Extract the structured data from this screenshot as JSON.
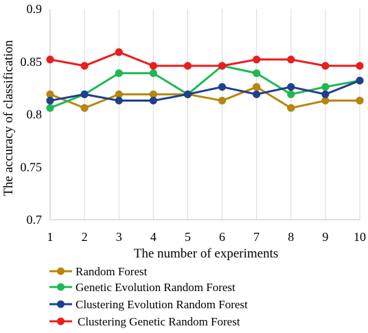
{
  "chart_data": {
    "type": "line",
    "title": "",
    "xlabel": "The number of experiments",
    "ylabel": "The accuracy of classification",
    "x": [
      1,
      2,
      3,
      4,
      5,
      6,
      7,
      8,
      9,
      10
    ],
    "xlim": [
      1,
      10
    ],
    "ylim": [
      0.7,
      0.9
    ],
    "yticks": [
      0.7,
      0.75,
      0.8,
      0.85,
      0.9
    ],
    "ytick_labels": [
      "0.7",
      "0.75",
      "0.8",
      "0.85",
      "0.9"
    ],
    "xtick_labels": [
      "1",
      "2",
      "3",
      "4",
      "5",
      "6",
      "7",
      "8",
      "9",
      "10"
    ],
    "grid": "vertical",
    "legend_position": "bottom-left",
    "series": [
      {
        "name": "Random Forest",
        "color": "#B8860B",
        "values": [
          0.819,
          0.806,
          0.819,
          0.819,
          0.819,
          0.813,
          0.826,
          0.806,
          0.813,
          0.813
        ]
      },
      {
        "name": "Genetic Evolution Random Forest",
        "color": "#1DB954",
        "values": [
          0.806,
          0.819,
          0.839,
          0.839,
          0.819,
          0.846,
          0.839,
          0.819,
          0.826,
          0.832
        ]
      },
      {
        "name": "Clustering Evolution Random Forest",
        "color": "#1F3F8F",
        "values": [
          0.813,
          0.819,
          0.813,
          0.813,
          0.819,
          0.826,
          0.819,
          0.826,
          0.819,
          0.832
        ]
      },
      {
        "name": "Clustering Genetic Random Forest",
        "color": "#EE1C1C",
        "values": [
          0.852,
          0.846,
          0.859,
          0.846,
          0.846,
          0.846,
          0.852,
          0.852,
          0.846,
          0.846
        ]
      }
    ]
  }
}
